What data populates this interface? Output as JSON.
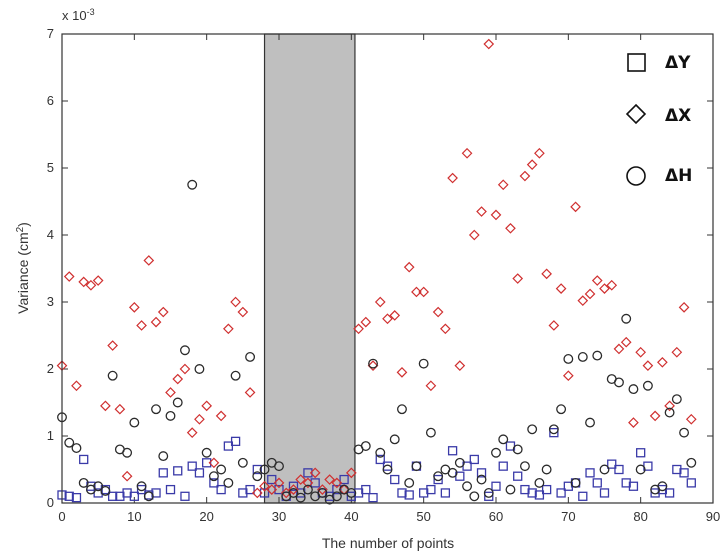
{
  "chart_data": {
    "type": "scatter",
    "xlabel": "The number of points",
    "ylabel": "Variance  (cm",
    "ylabel_sup": "2",
    "ylabel_close": ")",
    "exponent_label": "x 10",
    "exponent_power": "-3",
    "xlim": [
      0,
      90
    ],
    "ylim": [
      0,
      7
    ],
    "xticks": [
      "0",
      "10",
      "20",
      "30",
      "40",
      "50",
      "60",
      "70",
      "80",
      "90"
    ],
    "yticks": [
      "0",
      "1",
      "2",
      "3",
      "4",
      "5",
      "6",
      "7"
    ],
    "highlight_band": {
      "x_start": 28,
      "x_end": 40.5,
      "color": "#bfbfbf"
    },
    "series": [
      {
        "name": "ΔY",
        "marker": "square",
        "color": "#3a3aa8",
        "points": [
          [
            0,
            0.12
          ],
          [
            1,
            0.1
          ],
          [
            2,
            0.08
          ],
          [
            3,
            0.65
          ],
          [
            4,
            0.25
          ],
          [
            5,
            0.15
          ],
          [
            6,
            0.2
          ],
          [
            7,
            0.1
          ],
          [
            8,
            0.1
          ],
          [
            9,
            0.15
          ],
          [
            10,
            0.1
          ],
          [
            11,
            0.2
          ],
          [
            12,
            0.12
          ],
          [
            13,
            0.15
          ],
          [
            14,
            0.45
          ],
          [
            15,
            0.2
          ],
          [
            16,
            0.48
          ],
          [
            17,
            0.1
          ],
          [
            18,
            0.55
          ],
          [
            19,
            0.45
          ],
          [
            20,
            0.6
          ],
          [
            21,
            0.3
          ],
          [
            22,
            0.2
          ],
          [
            23,
            0.85
          ],
          [
            24,
            0.92
          ],
          [
            25,
            0.15
          ],
          [
            26,
            0.2
          ],
          [
            27,
            0.5
          ],
          [
            28,
            0.15
          ],
          [
            29,
            0.35
          ],
          [
            30,
            0.2
          ],
          [
            31,
            0.1
          ],
          [
            32,
            0.25
          ],
          [
            33,
            0.15
          ],
          [
            34,
            0.45
          ],
          [
            35,
            0.3
          ],
          [
            36,
            0.15
          ],
          [
            37,
            0.1
          ],
          [
            38,
            0.2
          ],
          [
            39,
            0.35
          ],
          [
            40,
            0.1
          ],
          [
            41,
            0.15
          ],
          [
            42,
            0.2
          ],
          [
            43,
            0.08
          ],
          [
            44,
            0.65
          ],
          [
            45,
            0.55
          ],
          [
            46,
            0.35
          ],
          [
            47,
            0.15
          ],
          [
            48,
            0.12
          ],
          [
            49,
            0.55
          ],
          [
            50,
            0.15
          ],
          [
            51,
            0.2
          ],
          [
            52,
            0.35
          ],
          [
            53,
            0.15
          ],
          [
            54,
            0.78
          ],
          [
            55,
            0.4
          ],
          [
            56,
            0.55
          ],
          [
            57,
            0.65
          ],
          [
            58,
            0.45
          ],
          [
            59,
            0.1
          ],
          [
            60,
            0.25
          ],
          [
            61,
            0.55
          ],
          [
            62,
            0.85
          ],
          [
            63,
            0.4
          ],
          [
            64,
            0.2
          ],
          [
            65,
            0.15
          ],
          [
            66,
            0.12
          ],
          [
            67,
            0.2
          ],
          [
            68,
            1.05
          ],
          [
            69,
            0.15
          ],
          [
            70,
            0.25
          ],
          [
            71,
            0.3
          ],
          [
            72,
            0.1
          ],
          [
            73,
            0.45
          ],
          [
            74,
            0.3
          ],
          [
            75,
            0.15
          ],
          [
            76,
            0.58
          ],
          [
            77,
            0.5
          ],
          [
            78,
            0.3
          ],
          [
            79,
            0.25
          ],
          [
            80,
            0.75
          ],
          [
            81,
            0.55
          ],
          [
            82,
            0.15
          ],
          [
            83,
            0.2
          ],
          [
            84,
            0.15
          ],
          [
            85,
            0.5
          ],
          [
            86,
            0.45
          ],
          [
            87,
            0.3
          ]
        ]
      },
      {
        "name": "ΔX",
        "marker": "diamond",
        "color": "#d03030",
        "points": [
          [
            0,
            2.05
          ],
          [
            1,
            3.38
          ],
          [
            2,
            1.75
          ],
          [
            3,
            3.3
          ],
          [
            4,
            3.25
          ],
          [
            5,
            3.32
          ],
          [
            6,
            1.45
          ],
          [
            7,
            2.35
          ],
          [
            8,
            1.4
          ],
          [
            9,
            0.4
          ],
          [
            10,
            2.92
          ],
          [
            11,
            2.65
          ],
          [
            12,
            3.62
          ],
          [
            13,
            2.7
          ],
          [
            14,
            2.85
          ],
          [
            15,
            1.65
          ],
          [
            16,
            1.85
          ],
          [
            17,
            2.0
          ],
          [
            18,
            1.05
          ],
          [
            19,
            1.25
          ],
          [
            20,
            1.45
          ],
          [
            21,
            0.6
          ],
          [
            22,
            1.3
          ],
          [
            23,
            2.6
          ],
          [
            24,
            3.0
          ],
          [
            25,
            2.85
          ],
          [
            26,
            1.65
          ],
          [
            27,
            0.15
          ],
          [
            28,
            0.25
          ],
          [
            29,
            0.2
          ],
          [
            30,
            0.3
          ],
          [
            31,
            0.15
          ],
          [
            32,
            0.2
          ],
          [
            33,
            0.35
          ],
          [
            34,
            0.3
          ],
          [
            35,
            0.45
          ],
          [
            36,
            0.2
          ],
          [
            37,
            0.35
          ],
          [
            38,
            0.3
          ],
          [
            39,
            0.2
          ],
          [
            40,
            0.45
          ],
          [
            41,
            2.6
          ],
          [
            42,
            2.7
          ],
          [
            43,
            2.05
          ],
          [
            44,
            3.0
          ],
          [
            45,
            2.75
          ],
          [
            46,
            2.8
          ],
          [
            47,
            1.95
          ],
          [
            48,
            3.52
          ],
          [
            49,
            3.15
          ],
          [
            50,
            3.15
          ],
          [
            51,
            1.75
          ],
          [
            52,
            2.85
          ],
          [
            53,
            2.6
          ],
          [
            54,
            4.85
          ],
          [
            55,
            2.05
          ],
          [
            56,
            5.22
          ],
          [
            57,
            4.0
          ],
          [
            58,
            4.35
          ],
          [
            59,
            6.85
          ],
          [
            60,
            4.3
          ],
          [
            61,
            4.75
          ],
          [
            62,
            4.1
          ],
          [
            63,
            3.35
          ],
          [
            64,
            4.88
          ],
          [
            65,
            5.05
          ],
          [
            66,
            5.22
          ],
          [
            67,
            3.42
          ],
          [
            68,
            2.65
          ],
          [
            69,
            3.2
          ],
          [
            70,
            1.9
          ],
          [
            71,
            4.42
          ],
          [
            72,
            3.02
          ],
          [
            73,
            3.12
          ],
          [
            74,
            3.32
          ],
          [
            75,
            3.2
          ],
          [
            76,
            3.25
          ],
          [
            77,
            2.3
          ],
          [
            78,
            2.4
          ],
          [
            79,
            1.2
          ],
          [
            80,
            2.25
          ],
          [
            81,
            2.05
          ],
          [
            82,
            1.3
          ],
          [
            83,
            2.1
          ],
          [
            84,
            1.45
          ],
          [
            85,
            2.25
          ],
          [
            86,
            2.92
          ],
          [
            87,
            1.25
          ]
        ]
      },
      {
        "name": "ΔH",
        "marker": "circle",
        "color": "#2b2b2b",
        "points": [
          [
            0,
            1.28
          ],
          [
            1,
            0.9
          ],
          [
            2,
            0.82
          ],
          [
            3,
            0.3
          ],
          [
            4,
            0.2
          ],
          [
            5,
            0.25
          ],
          [
            6,
            0.18
          ],
          [
            7,
            1.9
          ],
          [
            8,
            0.8
          ],
          [
            9,
            0.75
          ],
          [
            10,
            1.2
          ],
          [
            11,
            0.25
          ],
          [
            12,
            0.1
          ],
          [
            13,
            1.4
          ],
          [
            14,
            0.7
          ],
          [
            15,
            1.3
          ],
          [
            16,
            1.5
          ],
          [
            17,
            2.28
          ],
          [
            18,
            4.75
          ],
          [
            19,
            2.0
          ],
          [
            20,
            0.75
          ],
          [
            21,
            0.4
          ],
          [
            22,
            0.5
          ],
          [
            23,
            0.3
          ],
          [
            24,
            1.9
          ],
          [
            25,
            0.6
          ],
          [
            26,
            2.18
          ],
          [
            27,
            0.4
          ],
          [
            28,
            0.5
          ],
          [
            29,
            0.6
          ],
          [
            30,
            0.55
          ],
          [
            31,
            0.1
          ],
          [
            32,
            0.15
          ],
          [
            33,
            0.08
          ],
          [
            34,
            0.2
          ],
          [
            35,
            0.1
          ],
          [
            36,
            0.15
          ],
          [
            37,
            0.05
          ],
          [
            38,
            0.1
          ],
          [
            39,
            0.2
          ],
          [
            40,
            0.15
          ],
          [
            41,
            0.8
          ],
          [
            42,
            0.85
          ],
          [
            43,
            2.08
          ],
          [
            44,
            0.75
          ],
          [
            45,
            0.5
          ],
          [
            46,
            0.95
          ],
          [
            47,
            1.4
          ],
          [
            48,
            0.3
          ],
          [
            49,
            0.55
          ],
          [
            50,
            2.08
          ],
          [
            51,
            1.05
          ],
          [
            52,
            0.4
          ],
          [
            53,
            0.5
          ],
          [
            54,
            0.45
          ],
          [
            55,
            0.6
          ],
          [
            56,
            0.25
          ],
          [
            57,
            0.1
          ],
          [
            58,
            0.35
          ],
          [
            59,
            0.15
          ],
          [
            60,
            0.75
          ],
          [
            61,
            0.95
          ],
          [
            62,
            0.2
          ],
          [
            63,
            0.8
          ],
          [
            64,
            0.55
          ],
          [
            65,
            1.1
          ],
          [
            66,
            0.3
          ],
          [
            67,
            0.5
          ],
          [
            68,
            1.1
          ],
          [
            69,
            1.4
          ],
          [
            70,
            2.15
          ],
          [
            71,
            0.3
          ],
          [
            72,
            2.18
          ],
          [
            73,
            1.2
          ],
          [
            74,
            2.2
          ],
          [
            75,
            0.5
          ],
          [
            76,
            1.85
          ],
          [
            77,
            1.8
          ],
          [
            78,
            2.75
          ],
          [
            79,
            1.7
          ],
          [
            80,
            0.5
          ],
          [
            81,
            1.75
          ],
          [
            82,
            0.2
          ],
          [
            83,
            0.25
          ],
          [
            84,
            1.35
          ],
          [
            85,
            1.55
          ],
          [
            86,
            1.05
          ],
          [
            87,
            0.6
          ]
        ]
      }
    ],
    "legend": {
      "position": "top-right",
      "items": [
        {
          "label": "ΔY",
          "marker": "square"
        },
        {
          "label": "ΔX",
          "marker": "diamond"
        },
        {
          "label": "ΔH",
          "marker": "circle"
        }
      ]
    }
  }
}
